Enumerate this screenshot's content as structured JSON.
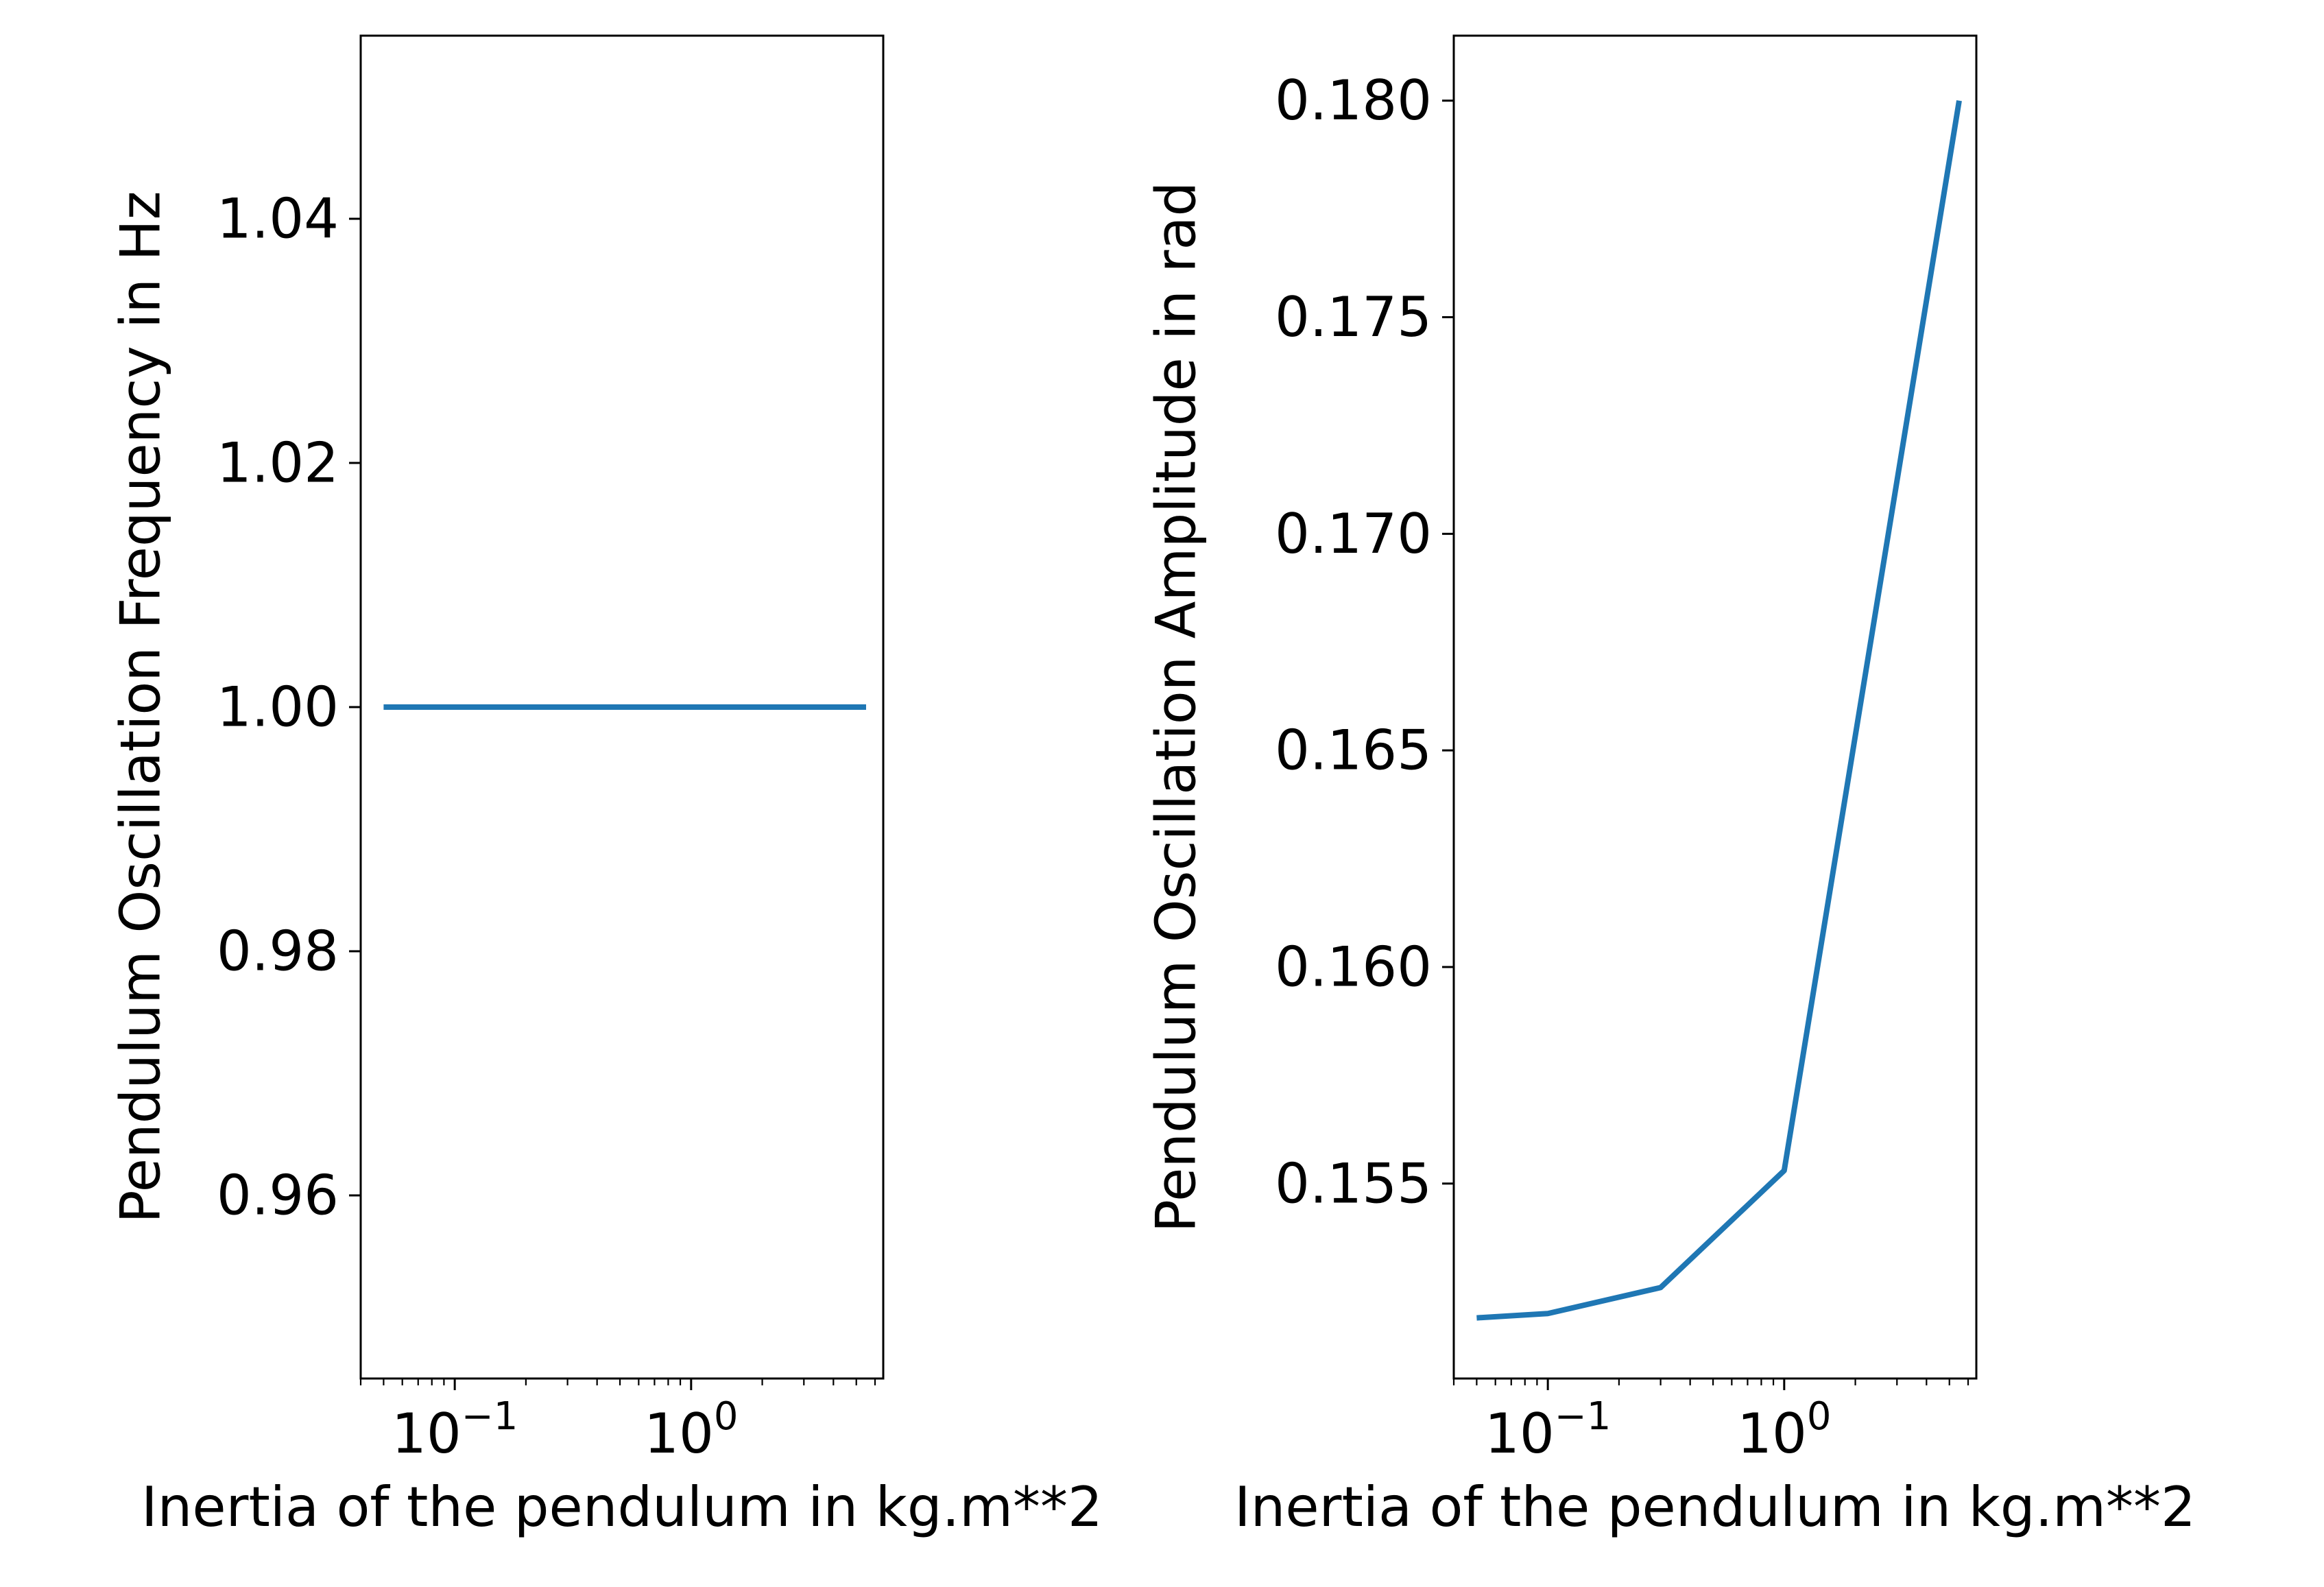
{
  "chart_data": [
    {
      "type": "line",
      "title": "",
      "xlabel": "Inertia of the pendulum in kg.m**2",
      "ylabel": "Pendulum Oscillation Frequency in Hz",
      "xscale": "log",
      "xlim": [
        0.04,
        6.5
      ],
      "ylim": [
        0.945,
        1.055
      ],
      "grid": false,
      "x_major_ticks": [
        {
          "value": 0.1,
          "base": "10",
          "exp": "−1"
        },
        {
          "value": 1,
          "base": "10",
          "exp": "0"
        }
      ],
      "y_ticks": [
        {
          "value": 0.96,
          "label": "0.96"
        },
        {
          "value": 0.98,
          "label": "0.98"
        },
        {
          "value": 1.0,
          "label": "1.00"
        },
        {
          "value": 1.02,
          "label": "1.02"
        },
        {
          "value": 1.04,
          "label": "1.04"
        }
      ],
      "series": [
        {
          "color": "#1f77b4",
          "x": [
            0.05,
            0.1,
            0.3,
            1,
            5.5
          ],
          "y": [
            1.0,
            1.0,
            1.0,
            1.0,
            1.0
          ]
        }
      ]
    },
    {
      "type": "line",
      "title": "",
      "xlabel": "Inertia of the pendulum in kg.m**2",
      "ylabel": "Pendulum Oscillation Amplitude in rad",
      "xscale": "log",
      "xlim": [
        0.04,
        6.5
      ],
      "ylim": [
        0.1505,
        0.1815
      ],
      "grid": false,
      "x_major_ticks": [
        {
          "value": 0.1,
          "base": "10",
          "exp": "−1"
        },
        {
          "value": 1,
          "base": "10",
          "exp": "0"
        }
      ],
      "y_ticks": [
        {
          "value": 0.155,
          "label": "0.155"
        },
        {
          "value": 0.16,
          "label": "0.160"
        },
        {
          "value": 0.165,
          "label": "0.165"
        },
        {
          "value": 0.17,
          "label": "0.170"
        },
        {
          "value": 0.175,
          "label": "0.175"
        },
        {
          "value": 0.18,
          "label": "0.180"
        }
      ],
      "series": [
        {
          "color": "#1f77b4",
          "x": [
            0.05,
            0.1,
            0.3,
            1,
            5.5
          ],
          "y": [
            0.1519,
            0.152,
            0.1526,
            0.1553,
            0.18
          ]
        }
      ]
    }
  ]
}
